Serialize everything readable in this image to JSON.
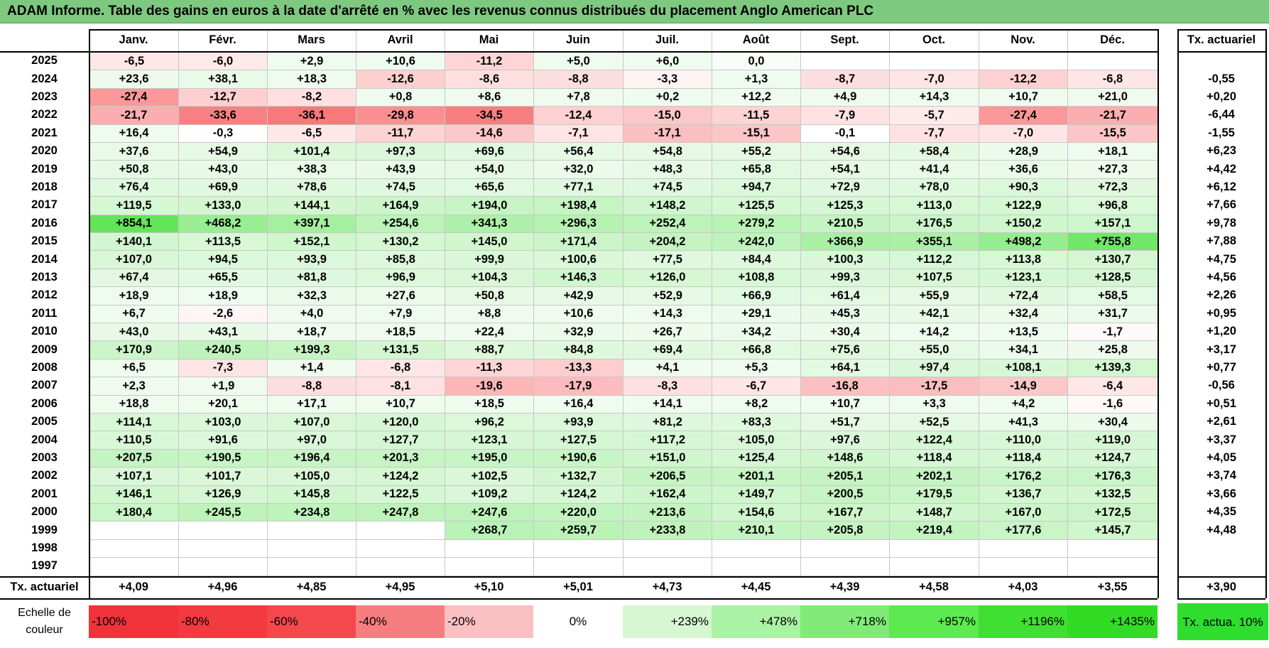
{
  "title": "ADAM Informe. Table des gains en euros à la date d'arrêté en % avec les revenus connus distribués du placement Anglo American PLC",
  "months": [
    "Janv.",
    "Févr.",
    "Mars",
    "Avril",
    "Mai",
    "Juin",
    "Juil.",
    "Août",
    "Sept.",
    "Oct.",
    "Nov.",
    "Déc."
  ],
  "tx_header": "Tx. actuariel",
  "rows": [
    {
      "year": "2025",
      "values": [
        "-6,5",
        "-6,0",
        "+2,9",
        "+10,6",
        "-11,2",
        "+5,0",
        "+6,0",
        "0,0",
        "",
        "",
        "",
        ""
      ],
      "tx": ""
    },
    {
      "year": "2024",
      "values": [
        "+23,6",
        "+38,1",
        "+18,3",
        "-12,6",
        "-8,6",
        "-8,8",
        "-3,3",
        "+1,3",
        "-8,7",
        "-7,0",
        "-12,2",
        "-6,8"
      ],
      "tx": "-0,55"
    },
    {
      "year": "2023",
      "values": [
        "-27,4",
        "-12,7",
        "-8,2",
        "+0,8",
        "+8,6",
        "+7,8",
        "+0,2",
        "+12,2",
        "+4,9",
        "+14,3",
        "+10,7",
        "+21,0"
      ],
      "tx": "+0,20"
    },
    {
      "year": "2022",
      "values": [
        "-21,7",
        "-33,6",
        "-36,1",
        "-29,8",
        "-34,5",
        "-12,4",
        "-15,0",
        "-11,5",
        "-7,9",
        "-5,7",
        "-27,4",
        "-21,7"
      ],
      "tx": "-6,44"
    },
    {
      "year": "2021",
      "values": [
        "+16,4",
        "-0,3",
        "-6,5",
        "-11,7",
        "-14,6",
        "-7,1",
        "-17,1",
        "-15,1",
        "-0,1",
        "-7,7",
        "-7,0",
        "-15,5"
      ],
      "tx": "-1,55"
    },
    {
      "year": "2020",
      "values": [
        "+37,6",
        "+54,9",
        "+101,4",
        "+97,3",
        "+69,6",
        "+56,4",
        "+54,8",
        "+55,2",
        "+54,6",
        "+58,4",
        "+28,9",
        "+18,1"
      ],
      "tx": "+6,23"
    },
    {
      "year": "2019",
      "values": [
        "+50,8",
        "+43,0",
        "+38,3",
        "+43,9",
        "+54,0",
        "+32,0",
        "+48,3",
        "+65,8",
        "+54,1",
        "+41,4",
        "+36,6",
        "+27,3"
      ],
      "tx": "+4,42"
    },
    {
      "year": "2018",
      "values": [
        "+76,4",
        "+69,9",
        "+78,6",
        "+74,5",
        "+65,6",
        "+77,1",
        "+74,5",
        "+94,7",
        "+72,9",
        "+78,0",
        "+90,3",
        "+72,3"
      ],
      "tx": "+6,12"
    },
    {
      "year": "2017",
      "values": [
        "+119,5",
        "+133,0",
        "+144,1",
        "+164,9",
        "+194,0",
        "+198,4",
        "+148,2",
        "+125,5",
        "+125,3",
        "+113,0",
        "+122,9",
        "+96,8"
      ],
      "tx": "+7,66"
    },
    {
      "year": "2016",
      "values": [
        "+854,1",
        "+468,2",
        "+397,1",
        "+254,6",
        "+341,3",
        "+296,3",
        "+252,4",
        "+279,2",
        "+210,5",
        "+176,5",
        "+150,2",
        "+157,1"
      ],
      "tx": "+9,78"
    },
    {
      "year": "2015",
      "values": [
        "+140,1",
        "+113,5",
        "+152,1",
        "+130,2",
        "+145,0",
        "+171,4",
        "+204,2",
        "+242,0",
        "+366,9",
        "+355,1",
        "+498,2",
        "+755,8"
      ],
      "tx": "+7,88"
    },
    {
      "year": "2014",
      "values": [
        "+107,0",
        "+94,5",
        "+93,9",
        "+85,8",
        "+99,9",
        "+100,6",
        "+77,5",
        "+84,4",
        "+100,3",
        "+112,2",
        "+113,8",
        "+130,7"
      ],
      "tx": "+4,75"
    },
    {
      "year": "2013",
      "values": [
        "+67,4",
        "+65,5",
        "+81,8",
        "+96,9",
        "+104,3",
        "+146,3",
        "+126,0",
        "+108,8",
        "+99,3",
        "+107,5",
        "+123,1",
        "+128,5"
      ],
      "tx": "+4,56"
    },
    {
      "year": "2012",
      "values": [
        "+18,9",
        "+18,9",
        "+32,3",
        "+27,6",
        "+50,8",
        "+42,9",
        "+52,9",
        "+66,9",
        "+61,4",
        "+55,9",
        "+72,4",
        "+58,5"
      ],
      "tx": "+2,26"
    },
    {
      "year": "2011",
      "values": [
        "+6,7",
        "-2,6",
        "+4,0",
        "+7,9",
        "+8,8",
        "+10,6",
        "+14,3",
        "+29,1",
        "+45,3",
        "+42,1",
        "+32,4",
        "+31,7"
      ],
      "tx": "+0,95"
    },
    {
      "year": "2010",
      "values": [
        "+43,0",
        "+43,1",
        "+18,7",
        "+18,5",
        "+22,4",
        "+32,9",
        "+26,7",
        "+34,2",
        "+30,4",
        "+14,2",
        "+13,5",
        "-1,7"
      ],
      "tx": "+1,20"
    },
    {
      "year": "2009",
      "values": [
        "+170,9",
        "+240,5",
        "+199,3",
        "+131,5",
        "+88,7",
        "+84,8",
        "+69,4",
        "+66,8",
        "+75,6",
        "+55,0",
        "+34,1",
        "+25,8"
      ],
      "tx": "+3,17"
    },
    {
      "year": "2008",
      "values": [
        "+6,5",
        "-7,3",
        "+1,4",
        "-6,8",
        "-11,3",
        "-13,3",
        "+4,1",
        "+5,3",
        "+64,1",
        "+97,4",
        "+108,1",
        "+139,3"
      ],
      "tx": "+0,77"
    },
    {
      "year": "2007",
      "values": [
        "+2,3",
        "+1,9",
        "-8,8",
        "-8,1",
        "-19,6",
        "-17,9",
        "-8,3",
        "-6,7",
        "-16,8",
        "-17,5",
        "-14,9",
        "-6,4"
      ],
      "tx": "-0,56"
    },
    {
      "year": "2006",
      "values": [
        "+18,8",
        "+20,1",
        "+17,1",
        "+10,7",
        "+18,5",
        "+16,4",
        "+14,1",
        "+8,2",
        "+10,7",
        "+3,3",
        "+4,2",
        "-1,6"
      ],
      "tx": "+0,51"
    },
    {
      "year": "2005",
      "values": [
        "+114,1",
        "+103,0",
        "+107,0",
        "+120,0",
        "+96,2",
        "+93,9",
        "+81,2",
        "+83,3",
        "+51,7",
        "+52,5",
        "+41,3",
        "+30,4"
      ],
      "tx": "+2,61"
    },
    {
      "year": "2004",
      "values": [
        "+110,5",
        "+91,6",
        "+97,0",
        "+127,7",
        "+123,1",
        "+127,5",
        "+117,2",
        "+105,0",
        "+97,6",
        "+122,4",
        "+110,0",
        "+119,0"
      ],
      "tx": "+3,37"
    },
    {
      "year": "2003",
      "values": [
        "+207,5",
        "+190,5",
        "+196,4",
        "+201,3",
        "+195,0",
        "+190,6",
        "+151,0",
        "+125,4",
        "+148,6",
        "+118,4",
        "+118,4",
        "+124,7"
      ],
      "tx": "+4,05"
    },
    {
      "year": "2002",
      "values": [
        "+107,1",
        "+101,7",
        "+105,0",
        "+124,2",
        "+102,5",
        "+132,7",
        "+206,5",
        "+201,1",
        "+205,1",
        "+202,1",
        "+176,2",
        "+176,3"
      ],
      "tx": "+3,74"
    },
    {
      "year": "2001",
      "values": [
        "+146,1",
        "+126,9",
        "+145,8",
        "+122,5",
        "+109,2",
        "+124,2",
        "+162,4",
        "+149,7",
        "+200,5",
        "+179,5",
        "+136,7",
        "+132,5"
      ],
      "tx": "+3,66"
    },
    {
      "year": "2000",
      "values": [
        "+180,4",
        "+245,5",
        "+234,8",
        "+247,8",
        "+247,6",
        "+220,0",
        "+213,6",
        "+154,6",
        "+167,7",
        "+148,7",
        "+167,0",
        "+172,5"
      ],
      "tx": "+4,35"
    },
    {
      "year": "1999",
      "values": [
        "",
        "",
        "",
        "",
        "+268,7",
        "+259,7",
        "+233,8",
        "+210,1",
        "+205,8",
        "+219,4",
        "+177,6",
        "+145,7"
      ],
      "tx": "+4,48"
    },
    {
      "year": "1998",
      "values": [
        "",
        "",
        "",
        "",
        "",
        "",
        "",
        "",
        "",
        "",
        "",
        ""
      ],
      "tx": ""
    },
    {
      "year": "1997",
      "values": [
        "",
        "",
        "",
        "",
        "",
        "",
        "",
        "",
        "",
        "",
        "",
        ""
      ],
      "tx": ""
    }
  ],
  "footer": {
    "label": "Tx. actuariel",
    "values": [
      "+4,09",
      "+4,96",
      "+4,85",
      "+4,95",
      "+5,10",
      "+5,01",
      "+4,73",
      "+4,45",
      "+4,39",
      "+4,58",
      "+4,03",
      "+3,55"
    ],
    "tx": "+3,90"
  },
  "scale": {
    "label": "Echelle de couleur",
    "items": [
      {
        "text": "-100%",
        "color": "#f0323a"
      },
      {
        "text": "-80%",
        "color": "#f23a40"
      },
      {
        "text": "-60%",
        "color": "#f4484d"
      },
      {
        "text": "-40%",
        "color": "#f67d80"
      },
      {
        "text": "-20%",
        "color": "#fbc0c1"
      },
      {
        "text": "0%",
        "color": "#ffffff"
      },
      {
        "text": "+239%",
        "color": "#d6f7d2"
      },
      {
        "text": "+478%",
        "color": "#aaf2a4"
      },
      {
        "text": "+718%",
        "color": "#80ec77"
      },
      {
        "text": "+957%",
        "color": "#5de950"
      },
      {
        "text": "+1196%",
        "color": "#3fe031"
      },
      {
        "text": "+1435%",
        "color": "#32dc25"
      }
    ],
    "tx_label": "Tx. actua. 10%",
    "tx_color": "#2fdd2f"
  },
  "colors": {
    "title_bg": "#7dc97f",
    "negative_max": "#f8696b",
    "positive_max": "#63be7b"
  }
}
